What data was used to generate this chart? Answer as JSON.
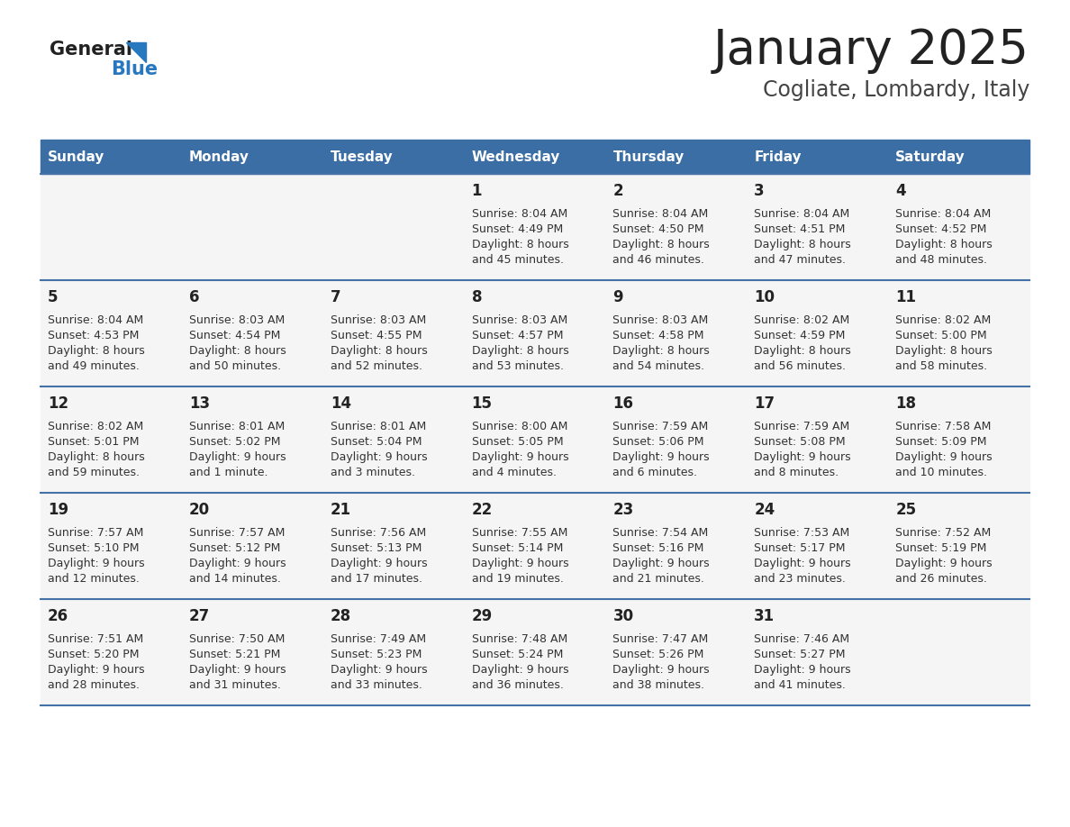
{
  "title": "January 2025",
  "subtitle": "Cogliate, Lombardy, Italy",
  "days_of_week": [
    "Sunday",
    "Monday",
    "Tuesday",
    "Wednesday",
    "Thursday",
    "Friday",
    "Saturday"
  ],
  "header_bg": "#3A6EA5",
  "header_text": "#FFFFFF",
  "row_bg": "#F5F5F5",
  "row_separator": "#4472A8",
  "day_number_color": "#222222",
  "cell_text_color": "#333333",
  "title_color": "#222222",
  "subtitle_color": "#444444",
  "logo_general_color": "#222222",
  "logo_blue_color": "#2878C0",
  "weeks": [
    {
      "days": [
        {
          "day": "",
          "sunrise": "",
          "sunset": "",
          "daylight": ""
        },
        {
          "day": "",
          "sunrise": "",
          "sunset": "",
          "daylight": ""
        },
        {
          "day": "",
          "sunrise": "",
          "sunset": "",
          "daylight": ""
        },
        {
          "day": "1",
          "sunrise": "8:04 AM",
          "sunset": "4:49 PM",
          "daylight": "8 hours and 45 minutes."
        },
        {
          "day": "2",
          "sunrise": "8:04 AM",
          "sunset": "4:50 PM",
          "daylight": "8 hours and 46 minutes."
        },
        {
          "day": "3",
          "sunrise": "8:04 AM",
          "sunset": "4:51 PM",
          "daylight": "8 hours and 47 minutes."
        },
        {
          "day": "4",
          "sunrise": "8:04 AM",
          "sunset": "4:52 PM",
          "daylight": "8 hours and 48 minutes."
        }
      ]
    },
    {
      "days": [
        {
          "day": "5",
          "sunrise": "8:04 AM",
          "sunset": "4:53 PM",
          "daylight": "8 hours and 49 minutes."
        },
        {
          "day": "6",
          "sunrise": "8:03 AM",
          "sunset": "4:54 PM",
          "daylight": "8 hours and 50 minutes."
        },
        {
          "day": "7",
          "sunrise": "8:03 AM",
          "sunset": "4:55 PM",
          "daylight": "8 hours and 52 minutes."
        },
        {
          "day": "8",
          "sunrise": "8:03 AM",
          "sunset": "4:57 PM",
          "daylight": "8 hours and 53 minutes."
        },
        {
          "day": "9",
          "sunrise": "8:03 AM",
          "sunset": "4:58 PM",
          "daylight": "8 hours and 54 minutes."
        },
        {
          "day": "10",
          "sunrise": "8:02 AM",
          "sunset": "4:59 PM",
          "daylight": "8 hours and 56 minutes."
        },
        {
          "day": "11",
          "sunrise": "8:02 AM",
          "sunset": "5:00 PM",
          "daylight": "8 hours and 58 minutes."
        }
      ]
    },
    {
      "days": [
        {
          "day": "12",
          "sunrise": "8:02 AM",
          "sunset": "5:01 PM",
          "daylight": "8 hours and 59 minutes."
        },
        {
          "day": "13",
          "sunrise": "8:01 AM",
          "sunset": "5:02 PM",
          "daylight": "9 hours and 1 minute."
        },
        {
          "day": "14",
          "sunrise": "8:01 AM",
          "sunset": "5:04 PM",
          "daylight": "9 hours and 3 minutes."
        },
        {
          "day": "15",
          "sunrise": "8:00 AM",
          "sunset": "5:05 PM",
          "daylight": "9 hours and 4 minutes."
        },
        {
          "day": "16",
          "sunrise": "7:59 AM",
          "sunset": "5:06 PM",
          "daylight": "9 hours and 6 minutes."
        },
        {
          "day": "17",
          "sunrise": "7:59 AM",
          "sunset": "5:08 PM",
          "daylight": "9 hours and 8 minutes."
        },
        {
          "day": "18",
          "sunrise": "7:58 AM",
          "sunset": "5:09 PM",
          "daylight": "9 hours and 10 minutes."
        }
      ]
    },
    {
      "days": [
        {
          "day": "19",
          "sunrise": "7:57 AM",
          "sunset": "5:10 PM",
          "daylight": "9 hours and 12 minutes."
        },
        {
          "day": "20",
          "sunrise": "7:57 AM",
          "sunset": "5:12 PM",
          "daylight": "9 hours and 14 minutes."
        },
        {
          "day": "21",
          "sunrise": "7:56 AM",
          "sunset": "5:13 PM",
          "daylight": "9 hours and 17 minutes."
        },
        {
          "day": "22",
          "sunrise": "7:55 AM",
          "sunset": "5:14 PM",
          "daylight": "9 hours and 19 minutes."
        },
        {
          "day": "23",
          "sunrise": "7:54 AM",
          "sunset": "5:16 PM",
          "daylight": "9 hours and 21 minutes."
        },
        {
          "day": "24",
          "sunrise": "7:53 AM",
          "sunset": "5:17 PM",
          "daylight": "9 hours and 23 minutes."
        },
        {
          "day": "25",
          "sunrise": "7:52 AM",
          "sunset": "5:19 PM",
          "daylight": "9 hours and 26 minutes."
        }
      ]
    },
    {
      "days": [
        {
          "day": "26",
          "sunrise": "7:51 AM",
          "sunset": "5:20 PM",
          "daylight": "9 hours and 28 minutes."
        },
        {
          "day": "27",
          "sunrise": "7:50 AM",
          "sunset": "5:21 PM",
          "daylight": "9 hours and 31 minutes."
        },
        {
          "day": "28",
          "sunrise": "7:49 AM",
          "sunset": "5:23 PM",
          "daylight": "9 hours and 33 minutes."
        },
        {
          "day": "29",
          "sunrise": "7:48 AM",
          "sunset": "5:24 PM",
          "daylight": "9 hours and 36 minutes."
        },
        {
          "day": "30",
          "sunrise": "7:47 AM",
          "sunset": "5:26 PM",
          "daylight": "9 hours and 38 minutes."
        },
        {
          "day": "31",
          "sunrise": "7:46 AM",
          "sunset": "5:27 PM",
          "daylight": "9 hours and 41 minutes."
        },
        {
          "day": "",
          "sunrise": "",
          "sunset": "",
          "daylight": ""
        }
      ]
    }
  ]
}
